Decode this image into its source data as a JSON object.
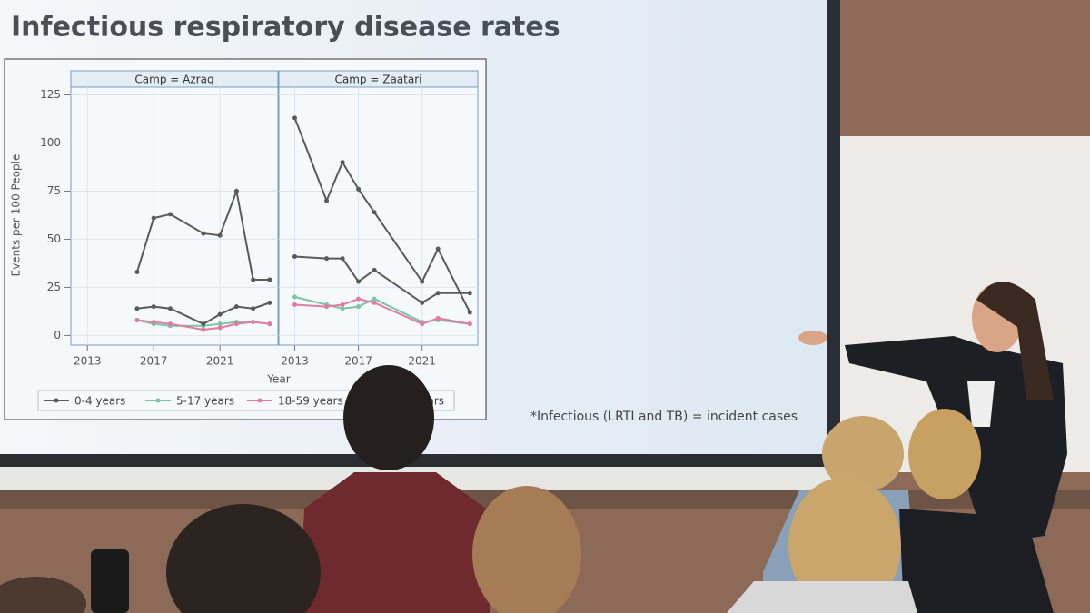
{
  "chart_data": {
    "type": "line",
    "title": "Infectious respiratory disease rates",
    "y_label": "Events per 100 People",
    "x_label": "Year",
    "annotation": "*Infectious (LRTI and TB) = incident cases",
    "xlim": [
      2012,
      2024.5
    ],
    "xticks": [
      2013,
      2017,
      2021
    ],
    "ylim": [
      -5,
      129
    ],
    "yticks": [
      0,
      25,
      50,
      75,
      100,
      125
    ],
    "grid": true,
    "legend_position": "bottom",
    "series": [
      {
        "name": "0-4 years",
        "color": "#5a5a5a"
      },
      {
        "name": "5-17 years",
        "color": "#7cc4a2"
      },
      {
        "name": "18-59 years",
        "color": "#e27ba2"
      },
      {
        "name": "years",
        "color": "#5a5a5a"
      }
    ],
    "panels": [
      {
        "title": "Camp = Azraq",
        "x": [
          2016,
          2017,
          2018,
          2020,
          2021,
          2022,
          2023,
          2024
        ],
        "values": [
          [
            33,
            61,
            63,
            53,
            52,
            75,
            29,
            29
          ],
          [
            8,
            6,
            5,
            5,
            6,
            7,
            7,
            6
          ],
          [
            8,
            7,
            6,
            3,
            4,
            6,
            7,
            6
          ],
          [
            14,
            15,
            14,
            6,
            11,
            15,
            14,
            17
          ]
        ]
      },
      {
        "title": "Camp = Zaatari",
        "x": [
          2013,
          2015,
          2016,
          2017,
          2018,
          2021,
          2022,
          2024
        ],
        "values": [
          [
            113,
            70,
            90,
            76,
            64,
            28,
            45,
            12
          ],
          [
            20,
            16,
            14,
            15,
            19,
            7,
            8,
            6
          ],
          [
            16,
            15,
            16,
            19,
            17,
            6,
            9,
            6
          ],
          [
            41,
            40,
            40,
            28,
            34,
            17,
            22,
            22
          ]
        ]
      }
    ]
  }
}
